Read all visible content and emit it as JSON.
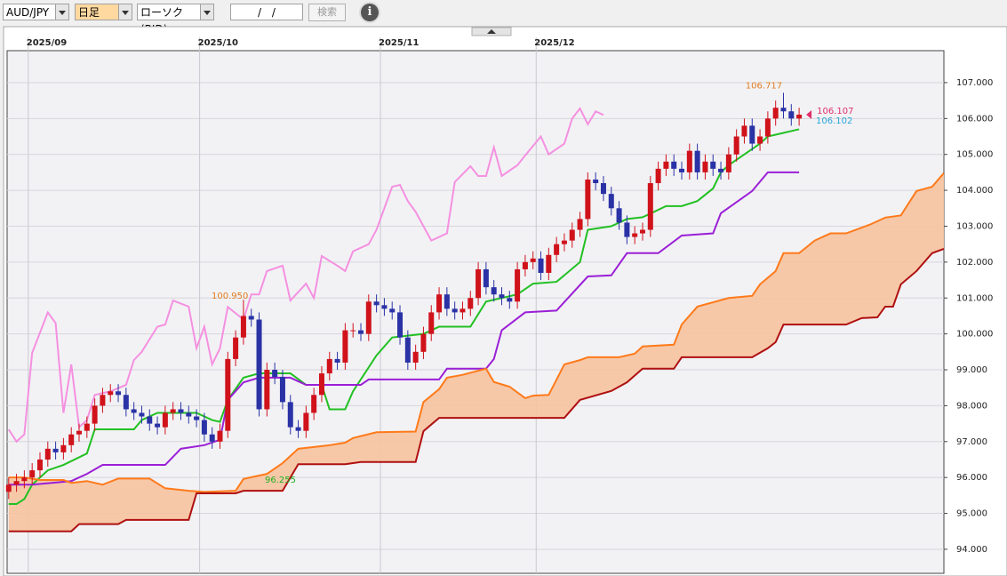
{
  "toolbar": {
    "symbol": "AUD/JPY",
    "period": "日足",
    "chart_kind": "ローソク(BID)",
    "date": "/ /",
    "search": "検索",
    "info": "i"
  },
  "chart_data": {
    "type": "candlestick",
    "up_color": "#d0121b",
    "down_color": "#2a32a6",
    "grid": true,
    "xlim": [
      -0.2,
      119.5
    ],
    "xticks": [
      {
        "value": 2.5,
        "label": "2025/09"
      },
      {
        "value": 24.4,
        "label": "2025/10"
      },
      {
        "value": 47.5,
        "label": "2025/11"
      },
      {
        "value": 67.4,
        "label": "2025/12"
      }
    ],
    "ylim": [
      93.33,
      107.89
    ],
    "yticks": [
      {
        "value": 94,
        "label": "94.000"
      },
      {
        "value": 95,
        "label": "95.000"
      },
      {
        "value": 96,
        "label": "96.000"
      },
      {
        "value": 97,
        "label": "97.000"
      },
      {
        "value": 98,
        "label": "98.000"
      },
      {
        "value": 99,
        "label": "99.000"
      },
      {
        "value": 100,
        "label": "100.000"
      },
      {
        "value": 101,
        "label": "101.000"
      },
      {
        "value": 102,
        "label": "102.000"
      },
      {
        "value": 103,
        "label": "103.000"
      },
      {
        "value": 104,
        "label": "104.000"
      },
      {
        "value": 105,
        "label": "105.000"
      },
      {
        "value": 106,
        "label": "106.000"
      },
      {
        "value": 107,
        "label": "107.000"
      }
    ],
    "open": [
      95.6,
      95.8,
      95.9,
      96.0,
      96.2,
      96.5,
      96.8,
      96.7,
      96.9,
      97.2,
      97.3,
      97.5,
      98.0,
      98.3,
      98.4,
      98.3,
      97.9,
      97.8,
      97.7,
      97.5,
      97.4,
      97.8,
      97.9,
      97.8,
      97.7,
      97.6,
      97.2,
      97.0,
      97.3,
      99.3,
      99.9,
      100.5,
      100.4,
      97.9,
      99.0,
      98.8,
      98.1,
      97.4,
      97.3,
      97.8,
      98.3,
      98.9,
      99.3,
      99.2,
      100.1,
      100.1,
      100.0,
      100.9,
      100.8,
      100.7,
      100.6,
      99.9,
      99.2,
      99.5,
      100.0,
      100.6,
      101.1,
      100.7,
      100.6,
      100.7,
      101.0,
      101.8,
      101.3,
      101.1,
      101.0,
      100.9,
      101.8,
      102.0,
      102.1,
      101.7,
      102.2,
      102.5,
      102.6,
      102.9,
      103.2,
      104.3,
      104.2,
      103.9,
      103.5,
      103.1,
      102.7,
      102.8,
      102.9,
      104.2,
      104.6,
      104.8,
      104.6,
      104.5,
      105.1,
      104.5,
      104.8,
      104.6,
      104.5,
      105.0,
      105.5,
      105.8,
      105.3,
      105.5,
      106.0,
      106.3,
      106.2,
      106.0
    ],
    "high": [
      96.0,
      96.1,
      96.2,
      96.4,
      96.7,
      97.0,
      97.0,
      97.1,
      97.4,
      97.5,
      97.7,
      98.2,
      98.5,
      98.6,
      98.6,
      98.5,
      98.1,
      98.0,
      97.9,
      97.7,
      98.0,
      98.1,
      98.1,
      98.0,
      97.9,
      97.8,
      97.4,
      97.5,
      99.5,
      100.1,
      100.95,
      100.7,
      100.6,
      99.2,
      99.2,
      99.0,
      98.3,
      97.6,
      98.0,
      98.5,
      99.1,
      99.5,
      99.5,
      100.3,
      100.3,
      100.3,
      101.1,
      101.1,
      101.0,
      100.9,
      100.8,
      100.1,
      99.7,
      100.2,
      100.8,
      101.3,
      101.3,
      100.9,
      100.9,
      101.2,
      102.0,
      102.0,
      101.5,
      101.3,
      101.2,
      102.0,
      102.2,
      102.3,
      102.3,
      102.4,
      102.7,
      102.8,
      103.1,
      103.4,
      104.5,
      104.5,
      104.4,
      104.1,
      103.7,
      103.3,
      103.0,
      103.1,
      104.4,
      104.8,
      105.0,
      105.0,
      104.8,
      105.3,
      105.3,
      105.0,
      105.0,
      104.8,
      105.2,
      105.7,
      106.0,
      106.0,
      105.7,
      106.2,
      106.5,
      106.717,
      106.4,
      106.3
    ],
    "low": [
      95.4,
      95.6,
      95.7,
      95.8,
      96.0,
      96.3,
      96.5,
      96.5,
      96.7,
      97.0,
      97.1,
      97.3,
      97.8,
      98.1,
      98.1,
      97.7,
      97.6,
      97.5,
      97.3,
      97.2,
      97.2,
      97.6,
      97.6,
      97.5,
      97.4,
      97.0,
      96.8,
      96.8,
      97.1,
      99.1,
      99.7,
      100.2,
      97.7,
      97.7,
      98.6,
      97.9,
      97.2,
      97.1,
      97.1,
      97.6,
      98.1,
      98.7,
      99.0,
      99.0,
      99.9,
      99.8,
      99.8,
      100.6,
      100.5,
      100.4,
      99.7,
      99.0,
      99.0,
      99.3,
      99.8,
      100.4,
      100.5,
      100.4,
      100.4,
      100.5,
      100.8,
      101.1,
      100.9,
      100.8,
      100.7,
      100.7,
      101.6,
      101.8,
      101.5,
      101.5,
      102.0,
      102.3,
      102.4,
      102.7,
      103.0,
      104.0,
      103.7,
      103.3,
      102.9,
      102.5,
      102.5,
      102.6,
      102.7,
      104.0,
      104.4,
      104.4,
      104.3,
      104.3,
      104.3,
      104.3,
      104.4,
      104.3,
      104.3,
      104.8,
      105.3,
      105.1,
      105.1,
      105.3,
      105.8,
      106.0,
      105.8,
      105.8
    ],
    "close": [
      95.8,
      95.9,
      96.0,
      96.2,
      96.5,
      96.8,
      96.7,
      96.9,
      97.2,
      97.3,
      97.5,
      98.0,
      98.3,
      98.4,
      98.3,
      97.9,
      97.8,
      97.7,
      97.5,
      97.4,
      97.8,
      97.9,
      97.8,
      97.7,
      97.6,
      97.2,
      97.0,
      97.3,
      99.3,
      99.9,
      100.5,
      100.4,
      97.9,
      99.0,
      98.8,
      98.1,
      97.4,
      97.3,
      97.8,
      98.3,
      98.9,
      99.3,
      99.2,
      100.1,
      100.1,
      100.0,
      100.9,
      100.8,
      100.7,
      100.6,
      99.9,
      99.2,
      99.5,
      100.0,
      100.6,
      101.1,
      100.7,
      100.6,
      100.7,
      101.0,
      101.8,
      101.3,
      101.1,
      101.0,
      100.9,
      101.8,
      102.0,
      102.1,
      101.7,
      102.2,
      102.5,
      102.6,
      102.9,
      103.2,
      104.3,
      104.2,
      103.9,
      103.5,
      103.1,
      102.7,
      102.8,
      102.9,
      104.2,
      104.6,
      104.8,
      104.6,
      104.5,
      105.1,
      104.5,
      104.8,
      104.6,
      104.5,
      105.0,
      105.5,
      105.8,
      105.3,
      105.5,
      106.0,
      106.3,
      106.2,
      106.0,
      106.107
    ],
    "series": [
      {
        "color": "#22c022",
        "x": [
          0,
          1,
          2,
          3,
          5,
          7,
          10,
          11,
          16,
          17,
          19,
          24,
          26,
          27,
          28,
          30,
          32,
          36,
          38,
          40,
          41,
          43,
          44,
          47,
          49,
          53,
          55,
          59,
          61,
          65,
          67,
          70,
          73,
          74,
          77,
          79,
          81,
          84,
          86,
          88,
          90,
          91,
          92,
          94,
          96,
          97,
          99,
          101
        ],
        "values": [
          95.26,
          95.26,
          95.4,
          95.8,
          96.2,
          96.35,
          96.67,
          97.34,
          97.34,
          97.6,
          97.8,
          97.8,
          97.6,
          97.55,
          98.16,
          98.78,
          98.9,
          98.9,
          98.58,
          98.58,
          97.9,
          97.9,
          98.4,
          99.4,
          99.9,
          100.0,
          100.2,
          100.2,
          100.9,
          101.1,
          101.4,
          101.45,
          102.0,
          102.9,
          103.0,
          103.2,
          103.25,
          103.56,
          103.56,
          103.7,
          104.05,
          104.5,
          104.7,
          105.0,
          105.3,
          105.5,
          105.6,
          105.7
        ]
      },
      {
        "color": "#9b1fd6",
        "x": [
          0,
          3,
          8,
          10,
          12,
          20,
          22,
          25,
          27,
          28,
          30,
          32,
          36,
          38,
          45,
          46,
          55,
          56,
          61,
          62,
          63,
          66,
          70,
          74,
          77,
          79,
          83,
          86,
          90,
          91,
          95,
          97,
          101
        ],
        "values": [
          95.8,
          95.8,
          95.9,
          96.1,
          96.35,
          96.35,
          96.8,
          96.9,
          97.05,
          98.16,
          98.65,
          98.78,
          98.78,
          98.58,
          98.58,
          98.73,
          98.73,
          99.03,
          99.03,
          99.3,
          100.1,
          100.6,
          100.65,
          101.6,
          101.63,
          102.25,
          102.25,
          102.74,
          102.8,
          103.36,
          103.98,
          104.5,
          104.5
        ]
      },
      {
        "color": "#f590e0",
        "x": [
          0,
          1,
          2,
          3,
          5,
          6,
          7,
          8,
          9,
          10,
          11,
          13,
          15,
          16,
          17,
          19,
          20,
          21,
          23,
          24,
          25,
          26,
          27,
          28,
          30,
          31,
          32,
          33,
          35,
          36,
          38,
          39,
          40,
          42,
          43,
          44,
          46,
          47,
          49,
          50,
          51,
          52,
          54,
          56,
          57,
          59,
          60,
          61,
          62,
          63,
          65,
          66,
          68,
          69,
          71,
          72,
          73,
          74,
          75,
          76
        ],
        "values": [
          97.34,
          97.0,
          97.2,
          99.47,
          100.6,
          100.3,
          97.8,
          99.15,
          97.4,
          97.6,
          98.3,
          98.4,
          98.58,
          99.27,
          99.5,
          100.2,
          100.26,
          100.93,
          100.76,
          99.6,
          100.2,
          99.15,
          99.6,
          100.75,
          100.4,
          101.1,
          101.1,
          101.75,
          101.9,
          100.93,
          101.4,
          101.0,
          102.17,
          101.9,
          101.75,
          102.3,
          102.5,
          102.9,
          104.1,
          104.15,
          103.7,
          103.4,
          102.6,
          102.8,
          104.23,
          104.67,
          104.4,
          104.4,
          105.2,
          104.4,
          104.7,
          104.97,
          105.5,
          105.0,
          105.3,
          106.0,
          106.28,
          105.84,
          106.2,
          106.1
        ]
      },
      {
        "color": "#ff7a1a",
        "fill": "#f6c3a0",
        "x": [
          0,
          2,
          4,
          7,
          8,
          10,
          12,
          14,
          18,
          20,
          23,
          25,
          29,
          30,
          33,
          35,
          37,
          39,
          41,
          43,
          44,
          47,
          52,
          53,
          55,
          56,
          58,
          61,
          62,
          64,
          66,
          67,
          69,
          71,
          73,
          74,
          78,
          80,
          81,
          85,
          86,
          88,
          92,
          95,
          96,
          98,
          99,
          101,
          103,
          105,
          107,
          110,
          112,
          114,
          116,
          118,
          119.5
        ],
        "values": [
          96.0,
          96.0,
          95.93,
          95.93,
          95.85,
          95.9,
          95.8,
          95.97,
          95.97,
          95.7,
          95.63,
          95.6,
          95.63,
          95.96,
          96.1,
          96.4,
          96.8,
          96.85,
          96.9,
          96.97,
          97.1,
          97.26,
          97.28,
          98.1,
          98.46,
          98.78,
          98.86,
          99.03,
          98.66,
          98.53,
          98.21,
          98.28,
          98.3,
          99.15,
          99.27,
          99.35,
          99.35,
          99.45,
          99.65,
          99.7,
          100.26,
          100.76,
          101.0,
          101.06,
          101.38,
          101.75,
          102.25,
          102.25,
          102.6,
          102.8,
          102.8,
          103.04,
          103.24,
          103.3,
          103.98,
          104.1,
          104.48
        ]
      },
      {
        "color": "#b01010",
        "x": [
          0,
          8,
          9,
          14,
          15,
          23,
          24,
          29,
          30,
          35,
          37,
          43,
          45,
          52,
          53,
          55,
          71,
          73,
          77,
          79,
          81,
          85,
          86,
          95,
          97,
          98,
          99,
          107,
          109,
          111,
          112,
          113,
          114,
          116,
          118,
          119.5
        ],
        "values": [
          94.5,
          94.5,
          94.7,
          94.7,
          94.82,
          94.82,
          95.56,
          95.56,
          95.63,
          95.63,
          96.37,
          96.37,
          96.43,
          96.43,
          97.29,
          97.66,
          97.66,
          98.16,
          98.41,
          98.65,
          99.03,
          99.03,
          99.35,
          99.35,
          99.6,
          99.77,
          100.26,
          100.26,
          100.44,
          100.46,
          100.76,
          100.76,
          101.38,
          101.75,
          102.25,
          102.37
        ]
      }
    ],
    "annotations": [
      {
        "text": "100.950",
        "color": "#e07b20"
      },
      {
        "text": "96.255",
        "color": "#22b022"
      },
      {
        "text": "106.102",
        "color": "#2aa6d8"
      }
    ],
    "high_mark_color": "#e07b20",
    "last_color": "#e0306a"
  }
}
